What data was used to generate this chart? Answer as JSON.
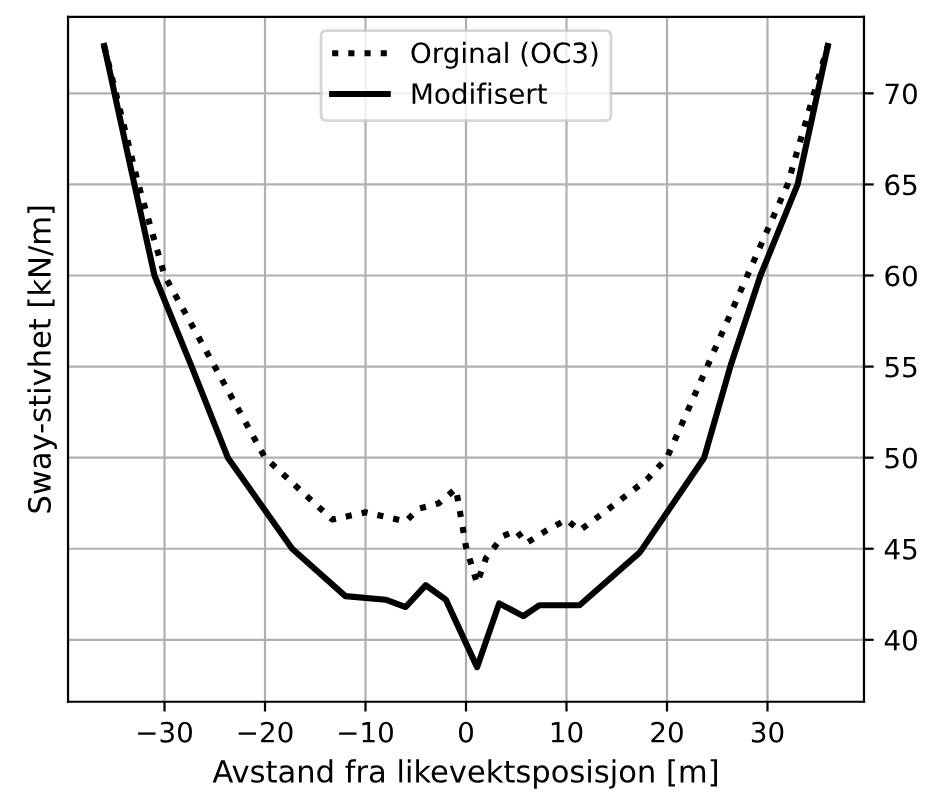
{
  "chart_data": {
    "type": "line",
    "xlabel": "Avstand fra likevektsposisjon [m]",
    "ylabel": "Sway-stivhet [kN/m]",
    "xlim": [
      -39.6,
      39.6
    ],
    "xticks": [
      {
        "value": -30,
        "label": "−30"
      },
      {
        "value": -20,
        "label": "−20"
      },
      {
        "value": -10,
        "label": "−10"
      },
      0,
      10,
      20,
      30
    ],
    "ylim": [
      36.6,
      74.2
    ],
    "yticks": [
      40,
      45,
      50,
      55,
      60,
      65,
      70
    ],
    "grid": true,
    "legend": "top",
    "marker": "none",
    "series": [
      {
        "name": "Orginal (OC3)",
        "color": "#000000",
        "line_style": "dotted",
        "x": [
          -36,
          -32.6,
          -30,
          -25,
          -20,
          -13.3,
          -10,
          -6,
          -4.7,
          -2.7,
          -1,
          0,
          1.1,
          2,
          3.7,
          5,
          6,
          8,
          10,
          11.3,
          14,
          18,
          20,
          24,
          28,
          32,
          36
        ],
        "values": [
          72.6,
          65,
          60,
          55,
          50,
          46.6,
          47,
          46.5,
          47.2,
          47.5,
          48.3,
          45.1,
          43.1,
          44.5,
          45.7,
          46,
          45.3,
          46,
          46.6,
          46,
          47.1,
          48.8,
          50,
          55,
          60,
          65,
          72.6
        ]
      },
      {
        "name": "Modifisert",
        "color": "#000000",
        "line_style": "solid",
        "x": [
          -36,
          -33,
          -31,
          -27.3,
          -23.7,
          -17.3,
          -12,
          -8,
          -6,
          -4,
          -2,
          -1,
          1.1,
          3.3,
          5.7,
          7.3,
          11.3,
          17.3,
          23.7,
          26.3,
          29.3,
          33,
          36
        ],
        "values": [
          72.6,
          65,
          60,
          55,
          50,
          45,
          42.4,
          42.2,
          41.8,
          43,
          42.2,
          41,
          38.5,
          42,
          41.3,
          41.9,
          41.9,
          44.8,
          50,
          55,
          60,
          65,
          72.6
        ]
      }
    ]
  }
}
